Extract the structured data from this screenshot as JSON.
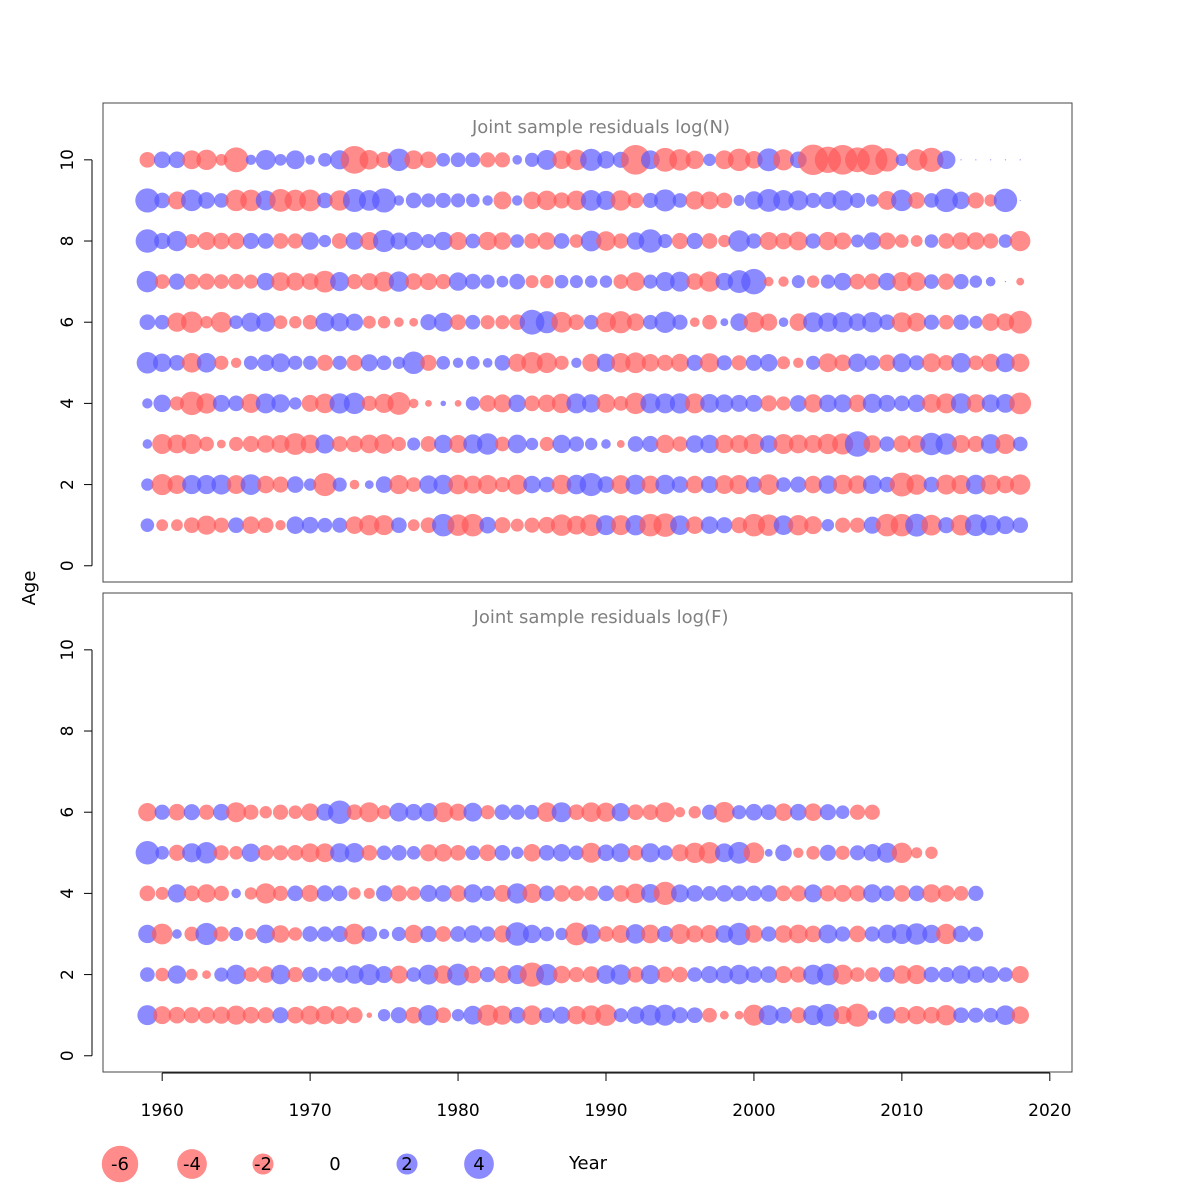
{
  "chart_data": {
    "type": "scatter",
    "encoding": "bubble",
    "xlabel": "Year",
    "ylabel": "Age",
    "xlim": [
      1956,
      2021.5
    ],
    "x_ticks": [
      1960,
      1970,
      1980,
      1990,
      2000,
      2010,
      2020
    ],
    "y_ticks": [
      0,
      2,
      4,
      6,
      8,
      10
    ],
    "colors": {
      "negative": "#ff5a5a",
      "positive": "#5a5aff",
      "opacity": 0.7
    },
    "legend": {
      "position": "bottom",
      "entries": [
        {
          "label": "-6",
          "value": -6
        },
        {
          "label": "-4",
          "value": -4
        },
        {
          "label": "-2",
          "value": -2
        },
        {
          "label": "0",
          "value": 0
        },
        {
          "label": "2",
          "value": 2
        },
        {
          "label": "4",
          "value": 4
        }
      ]
    },
    "panels": [
      {
        "title": "Joint sample residuals log(N)",
        "ylim": [
          -0.4,
          11.4
        ],
        "years": [
          1959,
          2018
        ],
        "ages": [
          1,
          2,
          3,
          4,
          5,
          6,
          7,
          8,
          9,
          10
        ],
        "residuals": {
          "1": [
            1.2,
            -0.9,
            -0.9,
            -1.6,
            -2.4,
            -1.5,
            1.6,
            -2.0,
            -1.6,
            -0.7,
            2.0,
            1.8,
            1.4,
            1.5,
            -2.0,
            -2.7,
            -2.6,
            1.6,
            -0.9,
            -1.6,
            3.3,
            -3.0,
            -3.3,
            1.8,
            -1.7,
            -1.1,
            -1.5,
            -1.8,
            -3.0,
            -2.3,
            -3.1,
            2.6,
            -2.6,
            2.7,
            -3.3,
            -3.6,
            2.5,
            -2.0,
            2.0,
            1.7,
            -1.7,
            -3.3,
            -3.0,
            2.5,
            -2.7,
            -2.1,
            1.0,
            -1.5,
            -1.5,
            1.9,
            -3.3,
            -3.3,
            3.4,
            -2.8,
            1.7,
            -2.8,
            3.1,
            2.7,
            2.1,
            1.6
          ],
          "2": [
            1.0,
            -2.9,
            -2.3,
            2.4,
            2.4,
            2.6,
            -2.3,
            2.8,
            -2.0,
            -1.7,
            1.8,
            1.0,
            -3.5,
            1.3,
            -0.6,
            0.5,
            1.8,
            -2.4,
            -1.4,
            2.2,
            2.5,
            -2.5,
            -2.1,
            -2.4,
            -1.5,
            -2.6,
            2.0,
            1.6,
            -2.5,
            2.5,
            3.5,
            1.8,
            -2.3,
            2.6,
            -2.1,
            2.5,
            1.8,
            -2.0,
            1.9,
            -2.3,
            -2.4,
            1.7,
            -2.8,
            1.4,
            1.7,
            -2.0,
            2.2,
            -2.5,
            -2.2,
            2.3,
            1.6,
            -3.7,
            -2.7,
            1.6,
            -2.6,
            -2.4,
            2.5,
            -2.6,
            -2.0,
            -2.7
          ],
          "3": [
            0.6,
            -2.6,
            -2.3,
            -2.6,
            -1.4,
            -0.5,
            -1.3,
            -1.7,
            -2.0,
            -2.1,
            -3.1,
            -2.3,
            2.4,
            -1.6,
            -1.8,
            -2.3,
            -2.5,
            -1.3,
            1.1,
            -1.6,
            2.2,
            -2.1,
            2.4,
            3.0,
            -1.4,
            2.3,
            1.0,
            -1.3,
            2.2,
            1.5,
            1.0,
            0.6,
            -0.4,
            1.6,
            1.7,
            -2.2,
            -1.5,
            2.0,
            2.2,
            -2.2,
            -2.1,
            -2.7,
            2.0,
            -2.6,
            -2.3,
            -2.1,
            -2.7,
            -2.9,
            4.2,
            -2.0,
            1.5,
            -1.9,
            -2.0,
            3.3,
            3.0,
            -2.1,
            -1.7,
            2.5,
            -2.6,
            1.4
          ],
          "4": [
            0.7,
            2.0,
            -1.3,
            -3.6,
            -2.7,
            1.9,
            1.6,
            -2.4,
            2.6,
            2.2,
            1.0,
            -1.9,
            -2.5,
            2.7,
            3.0,
            -1.5,
            -2.4,
            -3.4,
            -0.6,
            -0.3,
            0.2,
            -0.3,
            1.3,
            -1.8,
            -2.1,
            2.0,
            -1.6,
            -2.0,
            -2.5,
            2.6,
            2.2,
            -2.3,
            -1.4,
            -3.0,
            2.6,
            2.6,
            2.7,
            -2.6,
            2.3,
            2.1,
            1.9,
            1.9,
            -1.7,
            -1.3,
            1.8,
            -2.2,
            2.0,
            2.1,
            -2.0,
            2.4,
            1.9,
            1.6,
            2.0,
            -2.3,
            -2.6,
            2.7,
            -2.2,
            2.1,
            2.3,
            -3.1
          ],
          "5": [
            3.0,
            2.2,
            1.6,
            -2.5,
            2.5,
            -1.3,
            -0.7,
            1.3,
            1.8,
            2.3,
            1.3,
            1.3,
            -1.7,
            1.3,
            -1.7,
            1.9,
            1.4,
            1.0,
            3.3,
            -1.7,
            1.2,
            0.7,
            1.2,
            0.6,
            1.6,
            -2.1,
            -3.0,
            -2.7,
            -1.3,
            0.7,
            -2.1,
            2.2,
            -2.5,
            -2.8,
            -2.0,
            -1.7,
            -2.1,
            1.7,
            -2.4,
            1.5,
            -1.5,
            1.7,
            2.0,
            -1.1,
            -0.7,
            1.3,
            -2.3,
            -1.8,
            2.2,
            1.5,
            -1.8,
            2.3,
            1.5,
            -2.3,
            -1.6,
            2.5,
            -1.4,
            -2.1,
            2.3,
            -2.2
          ],
          "6": [
            1.6,
            1.4,
            -2.4,
            -3.0,
            -1.0,
            -2.8,
            1.2,
            2.4,
            2.4,
            -1.2,
            -1.0,
            -1.4,
            2.3,
            2.2,
            1.9,
            -1.1,
            -1.0,
            -0.6,
            -0.5,
            1.7,
            2.3,
            -1.6,
            1.4,
            -1.3,
            -1.3,
            -1.6,
            4.0,
            3.2,
            -2.8,
            -1.6,
            1.4,
            -2.6,
            -3.2,
            -2.0,
            1.4,
            3.0,
            1.5,
            -0.6,
            -1.4,
            0.4,
            2.0,
            -2.7,
            -1.9,
            0.6,
            -2.0,
            2.6,
            2.4,
            2.7,
            2.0,
            2.7,
            1.6,
            -2.6,
            -2.3,
            1.5,
            -1.4,
            1.6,
            1.1,
            -2.0,
            -2.0,
            -3.4
          ],
          "7": [
            3.0,
            -1.4,
            1.7,
            -1.6,
            -1.7,
            -1.4,
            -1.6,
            -1.3,
            2.0,
            -2.3,
            -2.1,
            -1.8,
            -3.1,
            2.4,
            -1.5,
            -1.9,
            -2.6,
            2.7,
            -1.8,
            -1.9,
            -1.5,
            2.2,
            1.6,
            1.3,
            0.9,
            1.6,
            -1.1,
            -1.2,
            1.2,
            1.1,
            1.0,
            1.0,
            -1.4,
            -2.3,
            1.3,
            2.4,
            2.6,
            -1.8,
            -2.7,
            2.0,
            3.4,
            4.2,
            -0.6,
            -0.7,
            1.1,
            -1.0,
            1.3,
            2.0,
            -1.6,
            -1.7,
            2.0,
            -2.4,
            -2.3,
            1.4,
            -1.7,
            1.5,
            1.0,
            0.6,
            0.0,
            -0.4
          ],
          "8": [
            3.6,
            1.7,
            2.7,
            -1.3,
            -2.1,
            -1.8,
            -1.8,
            1.7,
            1.6,
            -1.6,
            -1.5,
            2.0,
            1.0,
            -1.6,
            2.0,
            -2.1,
            3.2,
            1.9,
            2.2,
            1.3,
            2.2,
            -2.1,
            1.4,
            -2.2,
            -2.0,
            1.2,
            -1.6,
            -2.0,
            1.6,
            -1.2,
            2.8,
            -2.5,
            -1.5,
            2.0,
            3.6,
            1.3,
            -1.7,
            1.7,
            -1.6,
            -1.0,
            3.0,
            1.5,
            -2.1,
            -1.8,
            -2.3,
            1.5,
            -2.2,
            -1.9,
            1.1,
            2.0,
            -1.9,
            -1.2,
            -0.9,
            1.2,
            -1.6,
            -2.0,
            -2.0,
            -1.5,
            1.2,
            -2.7
          ],
          "9": [
            3.8,
            1.6,
            -2.1,
            3.0,
            1.8,
            1.4,
            -3.0,
            -3.0,
            2.6,
            -3.4,
            -3.0,
            -3.1,
            1.6,
            -2.7,
            3.5,
            2.8,
            3.8,
            0.7,
            1.6,
            1.3,
            1.5,
            1.3,
            1.2,
            0.7,
            -2.1,
            0.7,
            -2.0,
            -2.5,
            -1.7,
            -2.5,
            2.8,
            2.4,
            -2.7,
            -1.6,
            1.5,
            3.2,
            1.4,
            -2.2,
            -2.1,
            -1.6,
            0.8,
            2.2,
            3.4,
            2.8,
            2.6,
            1.5,
            1.9,
            2.7,
            1.5,
            1.0,
            -2.3,
            3.0,
            -1.8,
            1.4,
            3.6,
            2.0,
            -1.7,
            -1.0,
            3.6,
            0.0
          ],
          "10": [
            -1.6,
            1.8,
            1.8,
            -2.3,
            -2.7,
            -0.9,
            -4.0,
            0.7,
            2.6,
            0.9,
            2.3,
            0.6,
            1.2,
            2.4,
            -5.0,
            -2.5,
            -1.7,
            3.3,
            -2.3,
            -1.8,
            1.2,
            1.4,
            1.4,
            -1.5,
            -1.5,
            0.6,
            1.3,
            2.6,
            -2.2,
            -2.8,
            3.2,
            2.0,
            1.7,
            -5.7,
            2.3,
            -3.7,
            -3.0,
            -2.2,
            1.0,
            -2.3,
            -3.3,
            -2.0,
            3.4,
            -2.9,
            1.8,
            -6.0,
            -4.5,
            -5.7,
            -4.0,
            -6.0,
            -3.6,
            1.0,
            -3.0,
            -3.8,
            2.2,
            0.0,
            0.0,
            0.0,
            0.0,
            0.0
          ]
        }
      },
      {
        "title": "Joint sample residuals log(F)",
        "ylim": [
          -0.4,
          11.4
        ],
        "years": [
          1959,
          2018
        ],
        "ages": [
          1,
          2,
          3,
          4,
          5,
          6
        ],
        "residuals": {
          "1": [
            2.6,
            -2.1,
            -1.8,
            -1.7,
            -1.8,
            -1.9,
            -2.4,
            -1.8,
            -1.7,
            1.7,
            -1.8,
            -2.3,
            -2.2,
            -2.1,
            -1.7,
            -0.2,
            1.0,
            1.7,
            -1.8,
            2.7,
            -1.6,
            1.0,
            2.3,
            -2.9,
            -2.4,
            1.8,
            -2.5,
            1.6,
            1.9,
            -2.2,
            -2.5,
            -3.0,
            1.3,
            2.0,
            2.8,
            2.9,
            1.7,
            1.6,
            -1.4,
            -0.5,
            -0.5,
            -2.9,
            2.6,
            1.8,
            -1.7,
            2.6,
            3.3,
            -2.1,
            -3.5,
            0.6,
            1.9,
            -1.8,
            -2.2,
            -1.8,
            -2.7,
            1.6,
            1.5,
            1.4,
            2.5,
            -2.0
          ],
          "2": [
            1.4,
            -1.2,
            2.2,
            -0.9,
            -0.5,
            1.3,
            2.5,
            -1.4,
            -1.8,
            2.5,
            -1.5,
            1.6,
            1.2,
            1.8,
            2.2,
            2.9,
            1.9,
            -2.1,
            1.4,
            2.6,
            -2.2,
            3.1,
            -2.0,
            1.5,
            -2.0,
            2.4,
            -3.8,
            3.0,
            -2.0,
            -1.5,
            -1.8,
            2.3,
            2.7,
            -1.7,
            2.4,
            -1.7,
            -1.6,
            1.4,
            1.9,
            2.0,
            2.5,
            1.8,
            1.8,
            -1.9,
            -1.7,
            2.6,
            3.1,
            -2.6,
            -1.4,
            -1.4,
            1.6,
            -2.2,
            -2.4,
            1.6,
            1.5,
            2.2,
            1.8,
            1.8,
            1.4,
            -1.9
          ],
          "3": [
            2.2,
            -2.8,
            0.6,
            -1.4,
            3.2,
            -1.5,
            1.3,
            -0.9,
            2.3,
            -2.0,
            -1.2,
            1.6,
            1.5,
            1.7,
            -2.8,
            1.6,
            0.7,
            1.3,
            -2.2,
            1.7,
            -1.6,
            1.6,
            2.0,
            1.5,
            -1.9,
            3.6,
            2.2,
            1.4,
            1.0,
            -3.4,
            2.4,
            -1.6,
            -2.1,
            2.5,
            -2.3,
            1.7,
            -2.6,
            -1.9,
            -2.1,
            2.0,
            3.3,
            -2.0,
            1.5,
            -2.0,
            -2.3,
            -1.8,
            2.3,
            1.5,
            -1.8,
            1.5,
            2.3,
            2.6,
            3.0,
            2.2,
            -2.7,
            1.8,
            1.4
          ],
          "4": [
            -1.6,
            -1.1,
            2.2,
            -1.6,
            -2.2,
            -1.5,
            0.6,
            -1.0,
            -2.7,
            -1.5,
            1.6,
            -1.9,
            1.7,
            1.6,
            -1.0,
            -0.8,
            1.7,
            -1.7,
            -1.3,
            1.9,
            1.8,
            -1.8,
            2.2,
            1.5,
            -1.9,
            2.7,
            -2.4,
            1.6,
            -1.8,
            -1.6,
            -1.4,
            1.6,
            -1.8,
            -2.5,
            2.3,
            -3.5,
            2.1,
            1.8,
            1.4,
            1.8,
            1.6,
            1.6,
            1.8,
            -1.6,
            -1.7,
            2.1,
            -1.7,
            -1.9,
            -1.7,
            2.2,
            1.6,
            -1.8,
            1.6,
            -2.2,
            -1.8,
            -1.4,
            1.5
          ],
          "5": [
            3.6,
            1.2,
            -1.7,
            2.4,
            3.0,
            -1.5,
            -1.2,
            2.2,
            -1.6,
            -1.5,
            -1.6,
            -2.3,
            -2.3,
            2.4,
            2.5,
            -1.6,
            1.4,
            1.6,
            1.2,
            -1.9,
            -2.0,
            -1.6,
            1.4,
            -1.8,
            1.6,
            1.0,
            -2.0,
            1.6,
            2.0,
            1.4,
            -2.6,
            1.8,
            2.3,
            -1.6,
            2.4,
            1.5,
            -1.9,
            -2.7,
            -3.0,
            2.3,
            3.1,
            -2.8,
            0.4,
            1.8,
            -0.7,
            -1.2,
            1.7,
            -1.3,
            1.5,
            2.0,
            2.6,
            -2.7,
            -0.8,
            -1.0
          ],
          "6": [
            -2.2,
            1.5,
            -1.8,
            1.7,
            -1.5,
            1.8,
            -2.6,
            -1.5,
            -1.0,
            -1.5,
            -1.2,
            -2.0,
            1.9,
            3.6,
            -1.6,
            -2.6,
            -1.3,
            2.3,
            1.8,
            2.2,
            -2.6,
            -1.9,
            2.3,
            -1.3,
            1.6,
            1.5,
            1.4,
            -2.5,
            2.6,
            -1.6,
            -2.5,
            -2.4,
            2.2,
            -1.6,
            -1.6,
            -2.6,
            -0.7,
            -1.0,
            1.5,
            -2.8,
            1.3,
            1.8,
            1.6,
            -2.0,
            1.8,
            -2.0,
            1.7,
            1.2,
            -1.5,
            -1.5
          ]
        }
      }
    ]
  }
}
